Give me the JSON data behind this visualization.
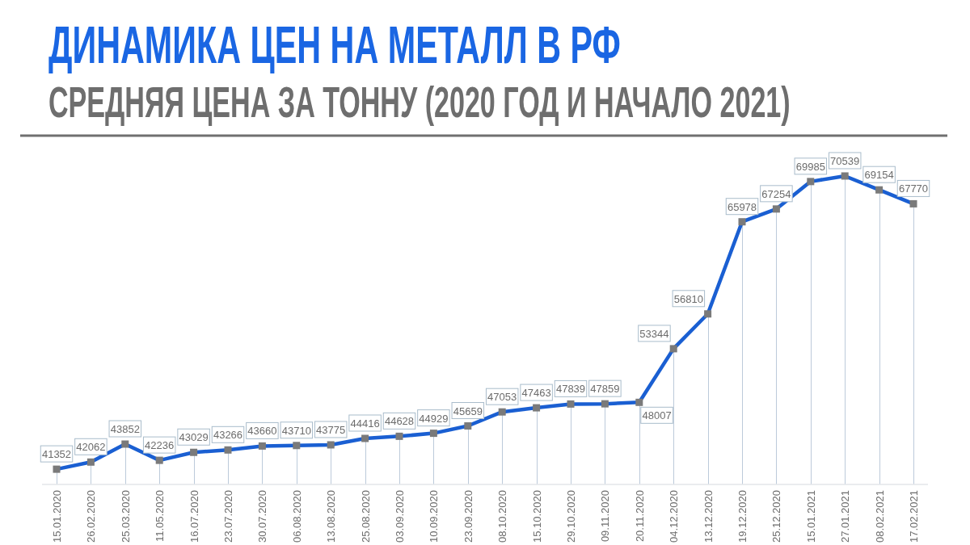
{
  "chart_data": {
    "type": "line",
    "title": "ДИНАМИКА ЦЕН НА МЕТАЛЛ В РФ",
    "subtitle": "СРЕДНЯЯ ЦЕНА ЗА ТОННУ (2020 ГОД И НАЧАЛО 2021)",
    "categories": [
      "15.01.2020",
      "26.02.2020",
      "25.03.2020",
      "11.05.2020",
      "16.07.2020",
      "23.07.2020",
      "30.07.2020",
      "06.08.2020",
      "13.08.2020",
      "25.08.2020",
      "03.09.2020",
      "10.09.2020",
      "23.09.2020",
      "08.10.2020",
      "15.10.2020",
      "29.10.2020",
      "09.11.2020",
      "20.11.2020",
      "04.12.2020",
      "13.12.2020",
      "19.12.2020",
      "25.12.2020",
      "15.01.2021",
      "27.01.2021",
      "08.02.2021",
      "17.02.2021"
    ],
    "series": [
      {
        "color": "#1a5fd2",
        "values": [
          41352,
          42062,
          43852,
          42236,
          43029,
          43266,
          43660,
          43710,
          43775,
          44416,
          44628,
          44929,
          45659,
          47053,
          47463,
          47839,
          47859,
          48007,
          53344,
          56810,
          65978,
          67254,
          69985,
          70539,
          69154,
          67770
        ]
      }
    ],
    "data_labels": true,
    "marker": "square",
    "line_style": "solid",
    "grid": "x"
  }
}
